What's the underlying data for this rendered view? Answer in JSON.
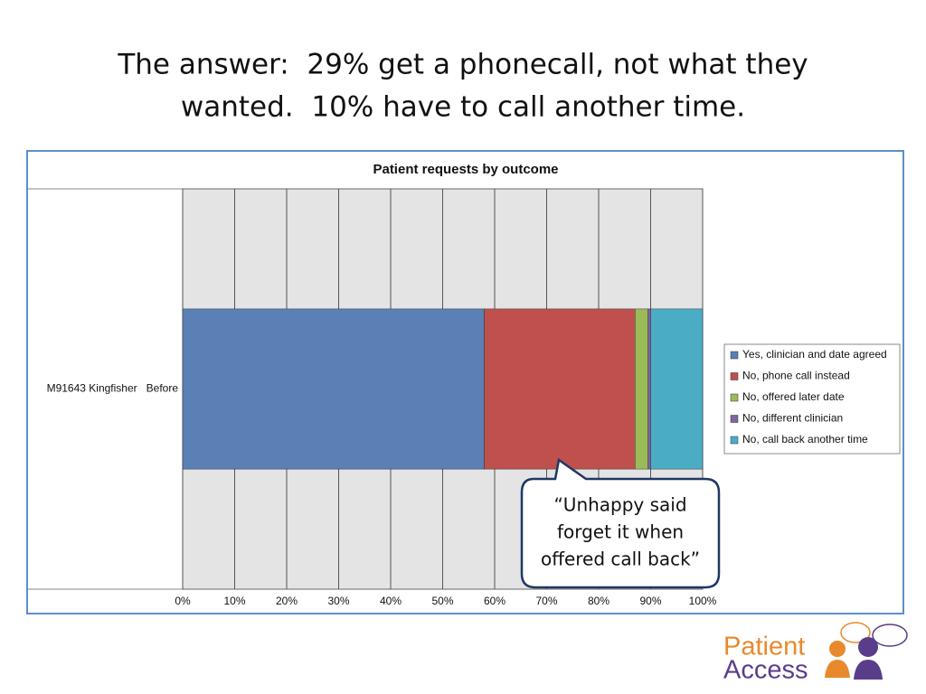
{
  "slide_title": [
    "The answer:  29% get a phonecall, not what they",
    "wanted.  10% have to call another time."
  ],
  "chart_data": {
    "type": "stacked-bar-horizontal",
    "title": "Patient requests by outcome",
    "categories": [
      "M91643 Kingfisher   Before"
    ],
    "series": [
      {
        "name": "Yes, clinician and date agreed",
        "color": "#5b80b5",
        "values": [
          58
        ]
      },
      {
        "name": "No, phone call instead",
        "color": "#c0504d",
        "values": [
          29
        ]
      },
      {
        "name": "No, offered later date",
        "color": "#9bbb59",
        "values": [
          2.5
        ]
      },
      {
        "name": "No, different clinician",
        "color": "#8064a2",
        "values": [
          0.5
        ]
      },
      {
        "name": "No, call back another time",
        "color": "#4bacc6",
        "values": [
          10
        ]
      }
    ],
    "xlim": [
      0,
      100
    ],
    "xticks": [
      {
        "value": 0,
        "label": "0%"
      },
      {
        "value": 10,
        "label": "10%"
      },
      {
        "value": 20,
        "label": "20%"
      },
      {
        "value": 30,
        "label": "30%"
      },
      {
        "value": 40,
        "label": "40%"
      },
      {
        "value": 50,
        "label": "50%"
      },
      {
        "value": 60,
        "label": "60%"
      },
      {
        "value": 70,
        "label": "70%"
      },
      {
        "value": 80,
        "label": "80%"
      },
      {
        "value": 90,
        "label": "90%"
      },
      {
        "value": 100,
        "label": "100%"
      }
    ],
    "grid": true,
    "legend": "right"
  },
  "callout": [
    "“Unhappy said",
    "forget it when",
    "offered call back”"
  ],
  "logo": [
    "Patient",
    "Access"
  ]
}
